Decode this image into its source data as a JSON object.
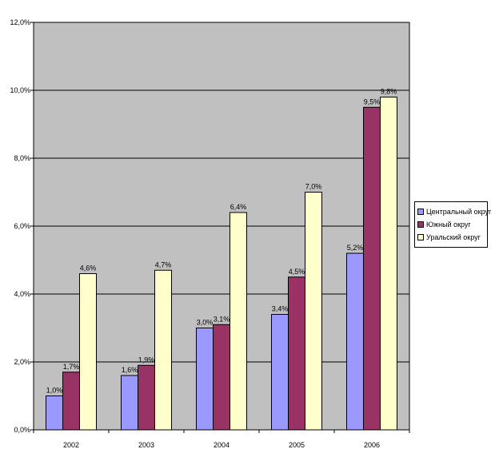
{
  "chart_data": {
    "type": "bar",
    "title": "",
    "xlabel": "",
    "ylabel": "",
    "categories": [
      "2002",
      "2003",
      "2004",
      "2005",
      "2006"
    ],
    "ylim": [
      0,
      12
    ],
    "y_ticks": [
      "0,0%",
      "2,0%",
      "4,0%",
      "6,0%",
      "8,0%",
      "10,0%",
      "12,0%"
    ],
    "y_tick_values": [
      0,
      2,
      4,
      6,
      8,
      10,
      12
    ],
    "grid": true,
    "legend_position": "right",
    "plot_background": "#c0c0c0",
    "series": [
      {
        "name": "Центральный округ",
        "color": "#9999ff",
        "values": [
          1.0,
          1.6,
          3.0,
          3.4,
          5.2
        ],
        "labels": [
          "1,0%",
          "1,6%",
          "3,0%",
          "3,4%",
          "5,2%"
        ]
      },
      {
        "name": "Южный округ",
        "color": "#993366",
        "values": [
          1.7,
          1.9,
          3.1,
          4.5,
          9.5
        ],
        "labels": [
          "1,7%",
          "1,9%",
          "3,1%",
          "4,5%",
          "9,5%"
        ]
      },
      {
        "name": "Уральский округ",
        "color": "#ffffcc",
        "values": [
          4.6,
          4.7,
          6.4,
          7.0,
          9.8
        ],
        "labels": [
          "4,6%",
          "4,7%",
          "6,4%",
          "7,0%",
          "9,8%"
        ]
      }
    ]
  }
}
